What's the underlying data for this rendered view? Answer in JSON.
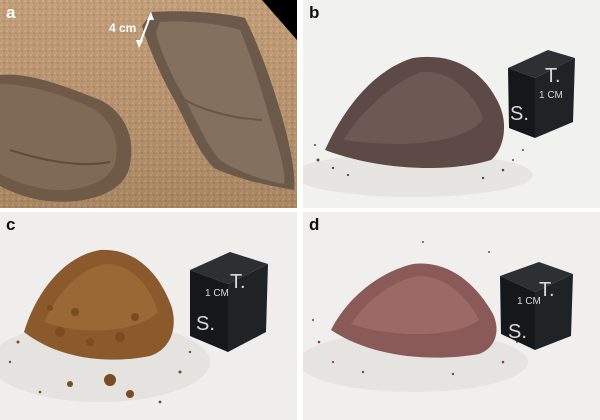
{
  "panels": [
    {
      "label": "a",
      "scale_label": "4 cm"
    },
    {
      "label": "b",
      "cube": {
        "top": "T.",
        "middle": "1 CM",
        "bottom": "S."
      }
    },
    {
      "label": "c",
      "cube": {
        "top": "T.",
        "middle": "1 CM",
        "bottom": "S."
      }
    },
    {
      "label": "d",
      "cube": {
        "top": "T.",
        "middle": "1 CM",
        "bottom": "S."
      }
    }
  ],
  "colors": {
    "mars_sand": "#b8916a",
    "sample_b": "#5a4844",
    "sample_c": "#8a5a2c",
    "sample_d": "#8a5a58",
    "cube": "#1f2326"
  }
}
